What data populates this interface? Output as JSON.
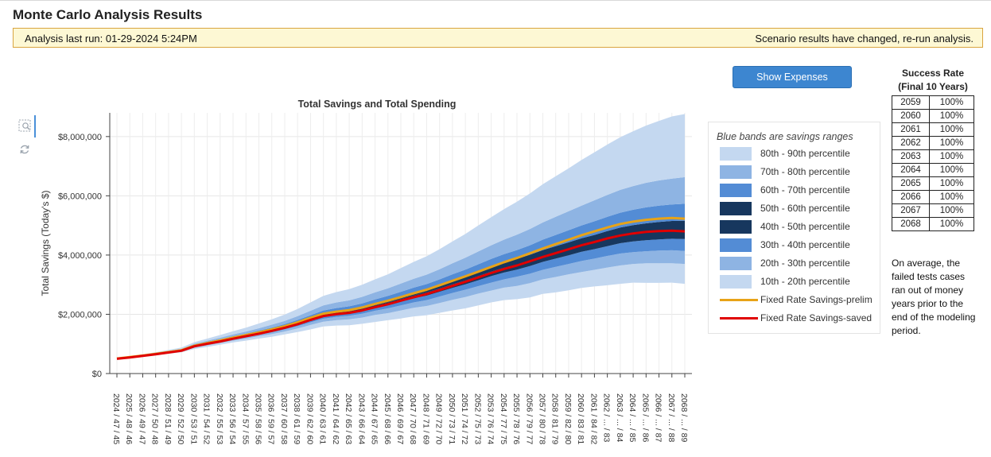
{
  "page_title": "Monte Carlo Analysis Results",
  "notice": {
    "last_run": "Analysis last run: 01-29-2024 5:24PM",
    "changed": "Scenario results have changed, re-run analysis."
  },
  "show_expenses_label": "Show Expenses",
  "toolbar": {
    "icons": [
      "zoom-icon",
      "refresh-icon"
    ]
  },
  "legend": {
    "title": "Blue bands are savings ranges",
    "items": [
      {
        "label": "80th - 90th percentile",
        "color": "#c4d8f0",
        "kind": "band"
      },
      {
        "label": "70th - 80th percentile",
        "color": "#8eb4e3",
        "kind": "band"
      },
      {
        "label": "60th - 70th percentile",
        "color": "#538cd5",
        "kind": "band"
      },
      {
        "label": "50th - 60th percentile",
        "color": "#17375e",
        "kind": "band"
      },
      {
        "label": "40th - 50th percentile",
        "color": "#17375e",
        "kind": "band"
      },
      {
        "label": "30th - 40th percentile",
        "color": "#538cd5",
        "kind": "band"
      },
      {
        "label": "20th - 30th percentile",
        "color": "#8eb4e3",
        "kind": "band"
      },
      {
        "label": "10th - 20th percentile",
        "color": "#c4d8f0",
        "kind": "band"
      },
      {
        "label": "Fixed Rate Savings-prelim",
        "color": "#e8a317",
        "kind": "line"
      },
      {
        "label": "Fixed Rate Savings-saved",
        "color": "#e00000",
        "kind": "line"
      }
    ]
  },
  "success_rate": {
    "title_line1": "Success Rate",
    "title_line2": "(Final 10 Years)",
    "rows": [
      {
        "year": "2059",
        "rate": "100%"
      },
      {
        "year": "2060",
        "rate": "100%"
      },
      {
        "year": "2061",
        "rate": "100%"
      },
      {
        "year": "2062",
        "rate": "100%"
      },
      {
        "year": "2063",
        "rate": "100%"
      },
      {
        "year": "2064",
        "rate": "100%"
      },
      {
        "year": "2065",
        "rate": "100%"
      },
      {
        "year": "2066",
        "rate": "100%"
      },
      {
        "year": "2067",
        "rate": "100%"
      },
      {
        "year": "2068",
        "rate": "100%"
      }
    ]
  },
  "failed_note": "On average, the failed tests cases ran out of money years prior to the end of the modeling period.",
  "chart_data": {
    "type": "area",
    "title": "Total Savings and Total Spending",
    "ylabel": "Total Savings (Today's $)",
    "xlabel": "",
    "ylim": [
      0,
      8800000
    ],
    "yticks": [
      0,
      2000000,
      4000000,
      6000000,
      8000000
    ],
    "ytick_labels": [
      "$0",
      "$2,000,000",
      "$4,000,000",
      "$6,000,000",
      "$8,000,000"
    ],
    "categories": [
      "2024 / 47 / 45",
      "2025 / 48 / 46",
      "2026 / 49 / 47",
      "2027 / 50 / 48",
      "2028 / 51 / 49",
      "2029 / 52 / 50",
      "2030 / 53 / 51",
      "2031 / 54 / 52",
      "2032 / 55 / 53",
      "2033 / 56 / 54",
      "2034 / 57 / 55",
      "2035 / 58 / 56",
      "2036 / 59 / 57",
      "2037 / 60 / 58",
      "2038 / 61 / 59",
      "2039 / 62 / 60",
      "2040 / 63 / 61",
      "2041 / 64 / 62",
      "2042 / 65 / 63",
      "2043 / 66 / 64",
      "2044 / 67 / 65",
      "2045 / 68 / 66",
      "2046 / 69 / 67",
      "2047 / 70 / 68",
      "2048 / 71 / 69",
      "2049 / 72 / 70",
      "2050 / 73 / 71",
      "2051 / 74 / 72",
      "2052 / 75 / 73",
      "2053 / 76 / 74",
      "2054 / 77 / 75",
      "2055 / 78 / 76",
      "2056 / 79 / 77",
      "2057 / 80 / 78",
      "2058 / 81 / 79",
      "2059 / 82 / 80",
      "2060 / 83 / 81",
      "2061 / 84 / 82",
      "2062 / ... / 83",
      "2063 / ... / 84",
      "2064 / ... / 85",
      "2065 / ... / 86",
      "2066 / ... / 87",
      "2067 / ... / 88",
      "2068 / ... / 89"
    ],
    "percentiles": {
      "p10": [
        500000,
        530000,
        570000,
        620000,
        670000,
        720000,
        830000,
        900000,
        970000,
        1050000,
        1110000,
        1180000,
        1240000,
        1320000,
        1400000,
        1490000,
        1590000,
        1620000,
        1630000,
        1680000,
        1740000,
        1800000,
        1860000,
        1930000,
        1970000,
        2050000,
        2130000,
        2200000,
        2300000,
        2400000,
        2480000,
        2510000,
        2570000,
        2690000,
        2740000,
        2810000,
        2890000,
        2940000,
        2980000,
        3030000,
        3070000,
        3060000,
        3060000,
        3070000,
        3030000
      ],
      "p20": [
        500000,
        540000,
        580000,
        630000,
        690000,
        740000,
        870000,
        950000,
        1030000,
        1110000,
        1180000,
        1260000,
        1330000,
        1420000,
        1520000,
        1640000,
        1750000,
        1800000,
        1830000,
        1890000,
        1980000,
        2040000,
        2130000,
        2220000,
        2280000,
        2380000,
        2490000,
        2580000,
        2700000,
        2800000,
        2900000,
        2960000,
        3050000,
        3180000,
        3260000,
        3350000,
        3430000,
        3500000,
        3580000,
        3650000,
        3700000,
        3720000,
        3720000,
        3720000,
        3700000
      ],
      "p30": [
        500000,
        545000,
        590000,
        645000,
        705000,
        760000,
        900000,
        980000,
        1060000,
        1150000,
        1230000,
        1310000,
        1390000,
        1490000,
        1600000,
        1730000,
        1850000,
        1910000,
        1950000,
        2020000,
        2120000,
        2200000,
        2300000,
        2400000,
        2480000,
        2600000,
        2720000,
        2830000,
        2950000,
        3070000,
        3180000,
        3270000,
        3370000,
        3500000,
        3600000,
        3700000,
        3800000,
        3880000,
        3970000,
        4050000,
        4100000,
        4130000,
        4150000,
        4160000,
        4140000
      ],
      "p40": [
        505000,
        550000,
        600000,
        655000,
        715000,
        775000,
        920000,
        1010000,
        1090000,
        1180000,
        1260000,
        1350000,
        1440000,
        1540000,
        1660000,
        1800000,
        1930000,
        2000000,
        2040000,
        2120000,
        2230000,
        2320000,
        2430000,
        2540000,
        2630000,
        2760000,
        2890000,
        3010000,
        3150000,
        3290000,
        3410000,
        3510000,
        3630000,
        3770000,
        3880000,
        3990000,
        4110000,
        4200000,
        4300000,
        4400000,
        4460000,
        4500000,
        4530000,
        4550000,
        4540000
      ],
      "p50": [
        508000,
        555000,
        606000,
        663000,
        725000,
        785000,
        940000,
        1030000,
        1110000,
        1200000,
        1290000,
        1380000,
        1470000,
        1580000,
        1700000,
        1850000,
        1990000,
        2060000,
        2100000,
        2190000,
        2300000,
        2400000,
        2520000,
        2640000,
        2740000,
        2870000,
        3010000,
        3140000,
        3290000,
        3440000,
        3570000,
        3680000,
        3810000,
        3960000,
        4080000,
        4200000,
        4330000,
        4430000,
        4550000,
        4650000,
        4720000,
        4770000,
        4810000,
        4830000,
        4830000
      ],
      "p60": [
        510000,
        560000,
        612000,
        670000,
        735000,
        795000,
        955000,
        1050000,
        1130000,
        1230000,
        1320000,
        1410000,
        1510000,
        1620000,
        1750000,
        1900000,
        2050000,
        2120000,
        2170000,
        2260000,
        2380000,
        2490000,
        2620000,
        2750000,
        2860000,
        3000000,
        3150000,
        3290000,
        3450000,
        3610000,
        3750000,
        3870000,
        4010000,
        4170000,
        4300000,
        4430000,
        4570000,
        4680000,
        4810000,
        4930000,
        5010000,
        5070000,
        5120000,
        5150000,
        5160000
      ],
      "p70": [
        512000,
        565000,
        620000,
        680000,
        745000,
        810000,
        975000,
        1075000,
        1160000,
        1260000,
        1350000,
        1450000,
        1550000,
        1670000,
        1810000,
        1970000,
        2130000,
        2210000,
        2270000,
        2370000,
        2500000,
        2620000,
        2760000,
        2900000,
        3020000,
        3180000,
        3350000,
        3510000,
        3690000,
        3870000,
        4030000,
        4170000,
        4330000,
        4520000,
        4680000,
        4840000,
        5000000,
        5140000,
        5290000,
        5430000,
        5530000,
        5610000,
        5670000,
        5710000,
        5730000
      ],
      "p80": [
        515000,
        575000,
        630000,
        695000,
        765000,
        835000,
        1005000,
        1110000,
        1210000,
        1320000,
        1420000,
        1530000,
        1650000,
        1780000,
        1940000,
        2120000,
        2300000,
        2400000,
        2470000,
        2590000,
        2740000,
        2880000,
        3040000,
        3200000,
        3340000,
        3520000,
        3720000,
        3910000,
        4120000,
        4330000,
        4520000,
        4690000,
        4880000,
        5100000,
        5290000,
        5480000,
        5670000,
        5850000,
        6030000,
        6200000,
        6330000,
        6440000,
        6520000,
        6580000,
        6630000
      ],
      "p90": [
        520000,
        590000,
        650000,
        720000,
        800000,
        880000,
        1060000,
        1180000,
        1300000,
        1430000,
        1550000,
        1690000,
        1830000,
        1990000,
        2180000,
        2400000,
        2620000,
        2750000,
        2850000,
        3000000,
        3180000,
        3350000,
        3560000,
        3770000,
        3960000,
        4200000,
        4460000,
        4710000,
        5000000,
        5280000,
        5550000,
        5800000,
        6080000,
        6390000,
        6660000,
        6930000,
        7210000,
        7470000,
        7730000,
        7980000,
        8180000,
        8370000,
        8530000,
        8680000,
        8760000
      ]
    },
    "series": [
      {
        "name": "Fixed Rate Savings-prelim",
        "color": "#e8a317",
        "values": [
          508000,
          555000,
          606000,
          663000,
          725000,
          785000,
          940000,
          1030000,
          1115000,
          1210000,
          1300000,
          1390000,
          1490000,
          1600000,
          1730000,
          1880000,
          2020000,
          2090000,
          2140000,
          2230000,
          2350000,
          2460000,
          2580000,
          2710000,
          2830000,
          2980000,
          3130000,
          3280000,
          3440000,
          3600000,
          3760000,
          3900000,
          4060000,
          4220000,
          4370000,
          4520000,
          4670000,
          4800000,
          4930000,
          5050000,
          5130000,
          5190000,
          5230000,
          5250000,
          5230000
        ]
      },
      {
        "name": "Fixed Rate Savings-saved",
        "color": "#e00000",
        "values": [
          500000,
          545000,
          595000,
          650000,
          710000,
          770000,
          920000,
          1005000,
          1085000,
          1175000,
          1260000,
          1345000,
          1440000,
          1545000,
          1665000,
          1810000,
          1940000,
          2005000,
          2050000,
          2130000,
          2240000,
          2340000,
          2460000,
          2575000,
          2685000,
          2820000,
          2960000,
          3095000,
          3245000,
          3395000,
          3530000,
          3650000,
          3790000,
          3935000,
          4065000,
          4195000,
          4330000,
          4440000,
          4560000,
          4660000,
          4730000,
          4780000,
          4810000,
          4820000,
          4800000
        ]
      }
    ]
  }
}
